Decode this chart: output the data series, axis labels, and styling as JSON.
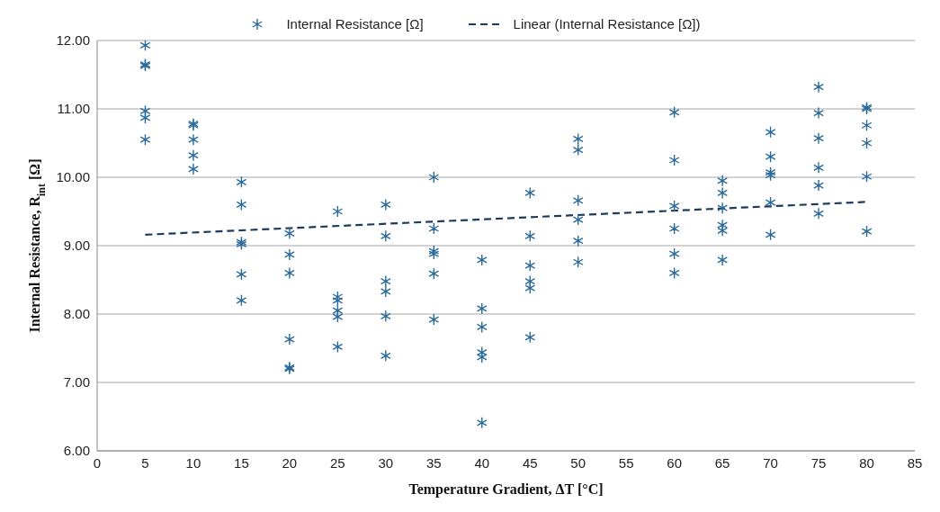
{
  "chart_data": {
    "type": "scatter",
    "xlabel": "Temperature Gradient, ΔT [°C]",
    "ylabel": "Internal Resistance, R$_{int}$ [Ω]",
    "xlim": [
      0,
      85
    ],
    "xticks": [
      0,
      5,
      10,
      15,
      20,
      25,
      30,
      35,
      40,
      45,
      50,
      55,
      60,
      65,
      70,
      75,
      80,
      85
    ],
    "ylim": [
      6,
      12
    ],
    "yticks": [
      {
        "value": 6,
        "label": "6.00"
      },
      {
        "value": 7,
        "label": "7.00"
      },
      {
        "value": 8,
        "label": "8.00"
      },
      {
        "value": 9,
        "label": "9.00"
      },
      {
        "value": 10,
        "label": "10.00"
      },
      {
        "value": 11,
        "label": "11.00"
      },
      {
        "value": 12,
        "label": "12.00"
      }
    ],
    "grid": "y",
    "legend": "top",
    "series": [
      {
        "name": "Internal Resistance [Ω]",
        "marker": "cross",
        "color": "#2a6a9a",
        "x": [
          5,
          5,
          5,
          5,
          5,
          5,
          10,
          10,
          10,
          10,
          10,
          15,
          15,
          15,
          15,
          15,
          15,
          20,
          20,
          20,
          20,
          20,
          20,
          25,
          25,
          25,
          25,
          25,
          25,
          30,
          30,
          30,
          30,
          30,
          30,
          35,
          35,
          35,
          35,
          35,
          35,
          40,
          40,
          40,
          40,
          40,
          40,
          45,
          45,
          45,
          45,
          45,
          45,
          50,
          50,
          50,
          50,
          50,
          50,
          60,
          60,
          60,
          60,
          60,
          60,
          65,
          65,
          65,
          65,
          65,
          65,
          70,
          70,
          70,
          70,
          70,
          70,
          75,
          75,
          75,
          75,
          75,
          75,
          80,
          80,
          80,
          80,
          80,
          80
        ],
        "values": [
          11.93,
          11.63,
          11.65,
          10.97,
          10.87,
          10.55,
          10.78,
          10.76,
          10.55,
          10.32,
          10.12,
          9.93,
          9.6,
          9.05,
          9.02,
          8.58,
          8.2,
          9.18,
          8.87,
          8.6,
          7.63,
          7.22,
          7.2,
          9.5,
          8.25,
          8.2,
          8.05,
          7.96,
          7.52,
          9.6,
          9.14,
          8.48,
          8.33,
          7.97,
          7.39,
          10,
          9.25,
          8.92,
          8.88,
          8.59,
          7.92,
          8.79,
          8.08,
          7.81,
          7.44,
          7.37,
          6.41,
          9.77,
          9.14,
          8.71,
          8.48,
          8.38,
          7.66,
          10.56,
          10.4,
          9.66,
          9.38,
          9.07,
          8.76,
          10.95,
          10.25,
          9.58,
          9.25,
          8.88,
          8.6,
          9.95,
          9.77,
          9.55,
          9.3,
          9.22,
          8.79,
          10.66,
          10.3,
          10.07,
          10.03,
          9.63,
          9.16,
          11.32,
          10.94,
          10.57,
          10.14,
          9.88,
          9.47,
          11.02,
          11,
          10.76,
          10.5,
          10.01,
          9.21
        ]
      },
      {
        "name": "Linear (Internal Resistance [Ω])",
        "type": "line",
        "marker": "none",
        "line_style": "dashed",
        "color": "#1f3b5c",
        "x": [
          5,
          80
        ],
        "values": [
          9.16,
          9.64
        ]
      }
    ]
  }
}
